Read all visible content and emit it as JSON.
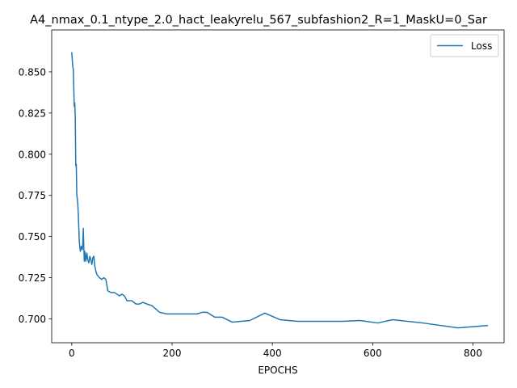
{
  "chart_data": {
    "type": "line",
    "title": "A4_nmax_0.1_ntype_2.0_hact_leakyrelu_567_subfashion2_R=1_MaskU=0_Sar",
    "xlabel": "EPOCHS",
    "ylabel": "",
    "xlim": [
      -40,
      862
    ],
    "ylim": [
      0.6855,
      0.8755
    ],
    "xticks": [
      0,
      200,
      400,
      600,
      800
    ],
    "yticks": [
      0.7,
      0.725,
      0.75,
      0.775,
      0.8,
      0.825,
      0.85
    ],
    "ytick_labels": [
      "0.700",
      "0.725",
      "0.750",
      "0.775",
      "0.800",
      "0.825",
      "0.850"
    ],
    "grid": false,
    "legend_position": "top-right",
    "series": [
      {
        "name": "Loss",
        "color": "#1f77b4",
        "x": [
          0,
          2,
          3,
          5,
          6,
          7,
          8,
          9,
          10,
          12,
          13,
          15,
          17,
          19,
          21,
          22,
          23,
          24,
          25,
          26,
          27,
          28,
          29,
          30,
          31,
          32,
          34,
          36,
          38,
          40,
          42,
          44,
          46,
          48,
          50,
          55,
          60,
          64,
          68,
          72,
          78,
          85,
          90,
          95,
          100,
          105,
          110,
          115,
          120,
          128,
          135,
          142,
          150,
          160,
          175,
          190,
          210,
          225,
          240,
          250,
          260,
          270,
          285,
          300,
          320,
          355,
          385,
          415,
          450,
          500,
          540,
          575,
          610,
          640,
          700,
          770,
          830
        ],
        "y": [
          0.862,
          0.853,
          0.852,
          0.829,
          0.831,
          0.822,
          0.793,
          0.794,
          0.776,
          0.77,
          0.764,
          0.747,
          0.741,
          0.744,
          0.742,
          0.746,
          0.755,
          0.744,
          0.735,
          0.741,
          0.738,
          0.735,
          0.737,
          0.74,
          0.738,
          0.736,
          0.734,
          0.738,
          0.736,
          0.733,
          0.737,
          0.738,
          0.732,
          0.729,
          0.727,
          0.725,
          0.724,
          0.725,
          0.724,
          0.717,
          0.716,
          0.716,
          0.715,
          0.714,
          0.715,
          0.714,
          0.711,
          0.711,
          0.711,
          0.709,
          0.709,
          0.71,
          0.709,
          0.708,
          0.704,
          0.703,
          0.703,
          0.703,
          0.703,
          0.703,
          0.704,
          0.704,
          0.701,
          0.701,
          0.698,
          0.699,
          0.7035,
          0.6995,
          0.6985,
          0.6985,
          0.6985,
          0.699,
          0.6975,
          0.6995,
          0.6975,
          0.6945,
          0.696
        ]
      }
    ]
  }
}
